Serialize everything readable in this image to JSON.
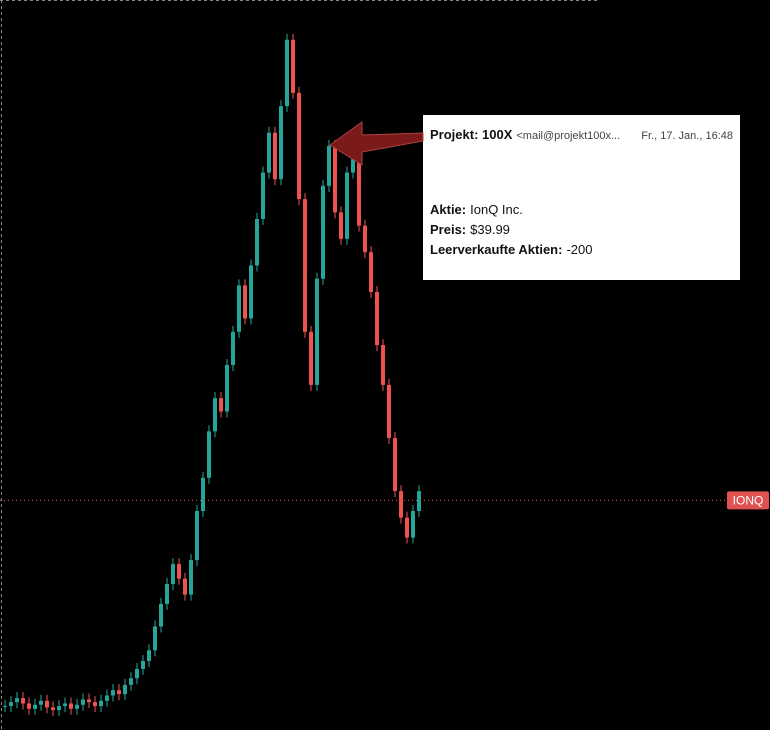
{
  "chart_data": {
    "type": "candlestick",
    "ylim": [
      0,
      55
    ],
    "values": [
      1.8,
      2.1,
      2.4,
      2.0,
      1.6,
      1.9,
      2.2,
      1.7,
      1.5,
      1.8,
      2.0,
      1.6,
      1.9,
      2.3,
      2.1,
      1.8,
      2.2,
      2.6,
      3.0,
      2.7,
      3.4,
      3.9,
      4.6,
      5.2,
      6.0,
      7.8,
      9.5,
      11.0,
      12.5,
      11.4,
      10.2,
      12.8,
      16.5,
      19.0,
      22.5,
      25.0,
      24.0,
      27.5,
      30.0,
      33.5,
      31.0,
      35.0,
      38.5,
      42.0,
      45.0,
      41.5,
      47.0,
      52.0,
      48.0,
      40.0,
      30.0,
      26.0,
      34.0,
      41.0,
      44.0,
      39.0,
      37.0,
      42.0,
      43.0,
      38.0,
      36.0,
      33.0,
      29.0,
      26.0,
      22.0,
      18.0,
      16.0,
      14.5,
      16.5,
      18.0
    ],
    "up_color": "#26a69a",
    "down_color": "#ef5350",
    "price_line": {
      "value": 17.3,
      "label": "IONQ",
      "color": "#e05252"
    }
  },
  "email": {
    "sender_name": "Projekt: 100X",
    "sender_address": "<mail@projekt100x...",
    "date": "Fr., 17. Jan., 16:48",
    "fields": [
      {
        "label": "Aktie:",
        "value": "IonQ Inc."
      },
      {
        "label": "Preis:",
        "value": "$39.99"
      },
      {
        "label": "Leerverkaufte Aktien:",
        "value": "-200"
      }
    ]
  }
}
